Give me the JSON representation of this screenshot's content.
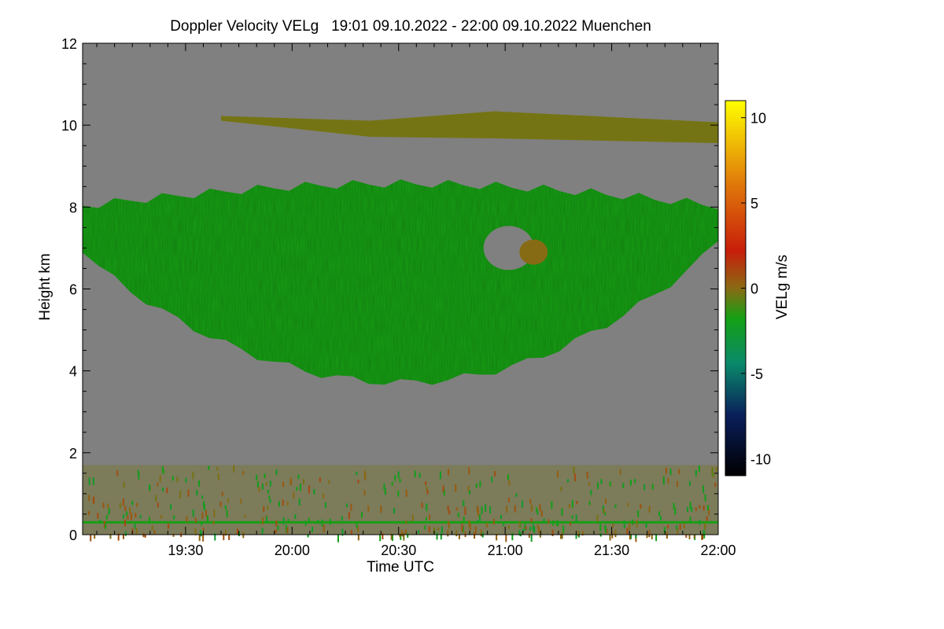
{
  "chart_data": {
    "type": "heatmap",
    "title": "Doppler Velocity VELg   19:01 09.10.2022 - 22:00 09.10.2022 Muenchen",
    "xlabel": "Time UTC",
    "ylabel": "Height km",
    "xlim": [
      "19:01",
      "22:00"
    ],
    "ylim": [
      0,
      12
    ],
    "xticks": [
      "19:30",
      "20:00",
      "20:30",
      "21:00",
      "21:30",
      "22:00"
    ],
    "yticks": [
      "0",
      "2",
      "4",
      "6",
      "8",
      "10",
      "12"
    ],
    "colorbar": {
      "label": "VELg m/s",
      "range": [
        -11,
        11
      ],
      "ticks": [
        "-10",
        "-5",
        "0",
        "5",
        "10"
      ],
      "colors": [
        "#000000",
        "#0a1e5a",
        "#0a8a6a",
        "#14a014",
        "#8a6a14",
        "#c81e0a",
        "#e07a0a",
        "#ffff00"
      ]
    },
    "background_color": "#808080",
    "features": [
      {
        "name": "upper cloud layer",
        "time_range": [
          "19:40",
          "22:00"
        ],
        "height_range_km": [
          9.6,
          10.3
        ],
        "velocity_ms": 1
      },
      {
        "name": "main cloud layer",
        "time_range": [
          "19:01",
          "22:00"
        ],
        "height_range_km": [
          4.1,
          8.8
        ],
        "velocity_ms": -1.5
      },
      {
        "name": "boundary layer echoes",
        "time_range": [
          "19:01",
          "22:00"
        ],
        "height_range_km": [
          0,
          1.7
        ],
        "velocity_ms": 1
      }
    ]
  }
}
